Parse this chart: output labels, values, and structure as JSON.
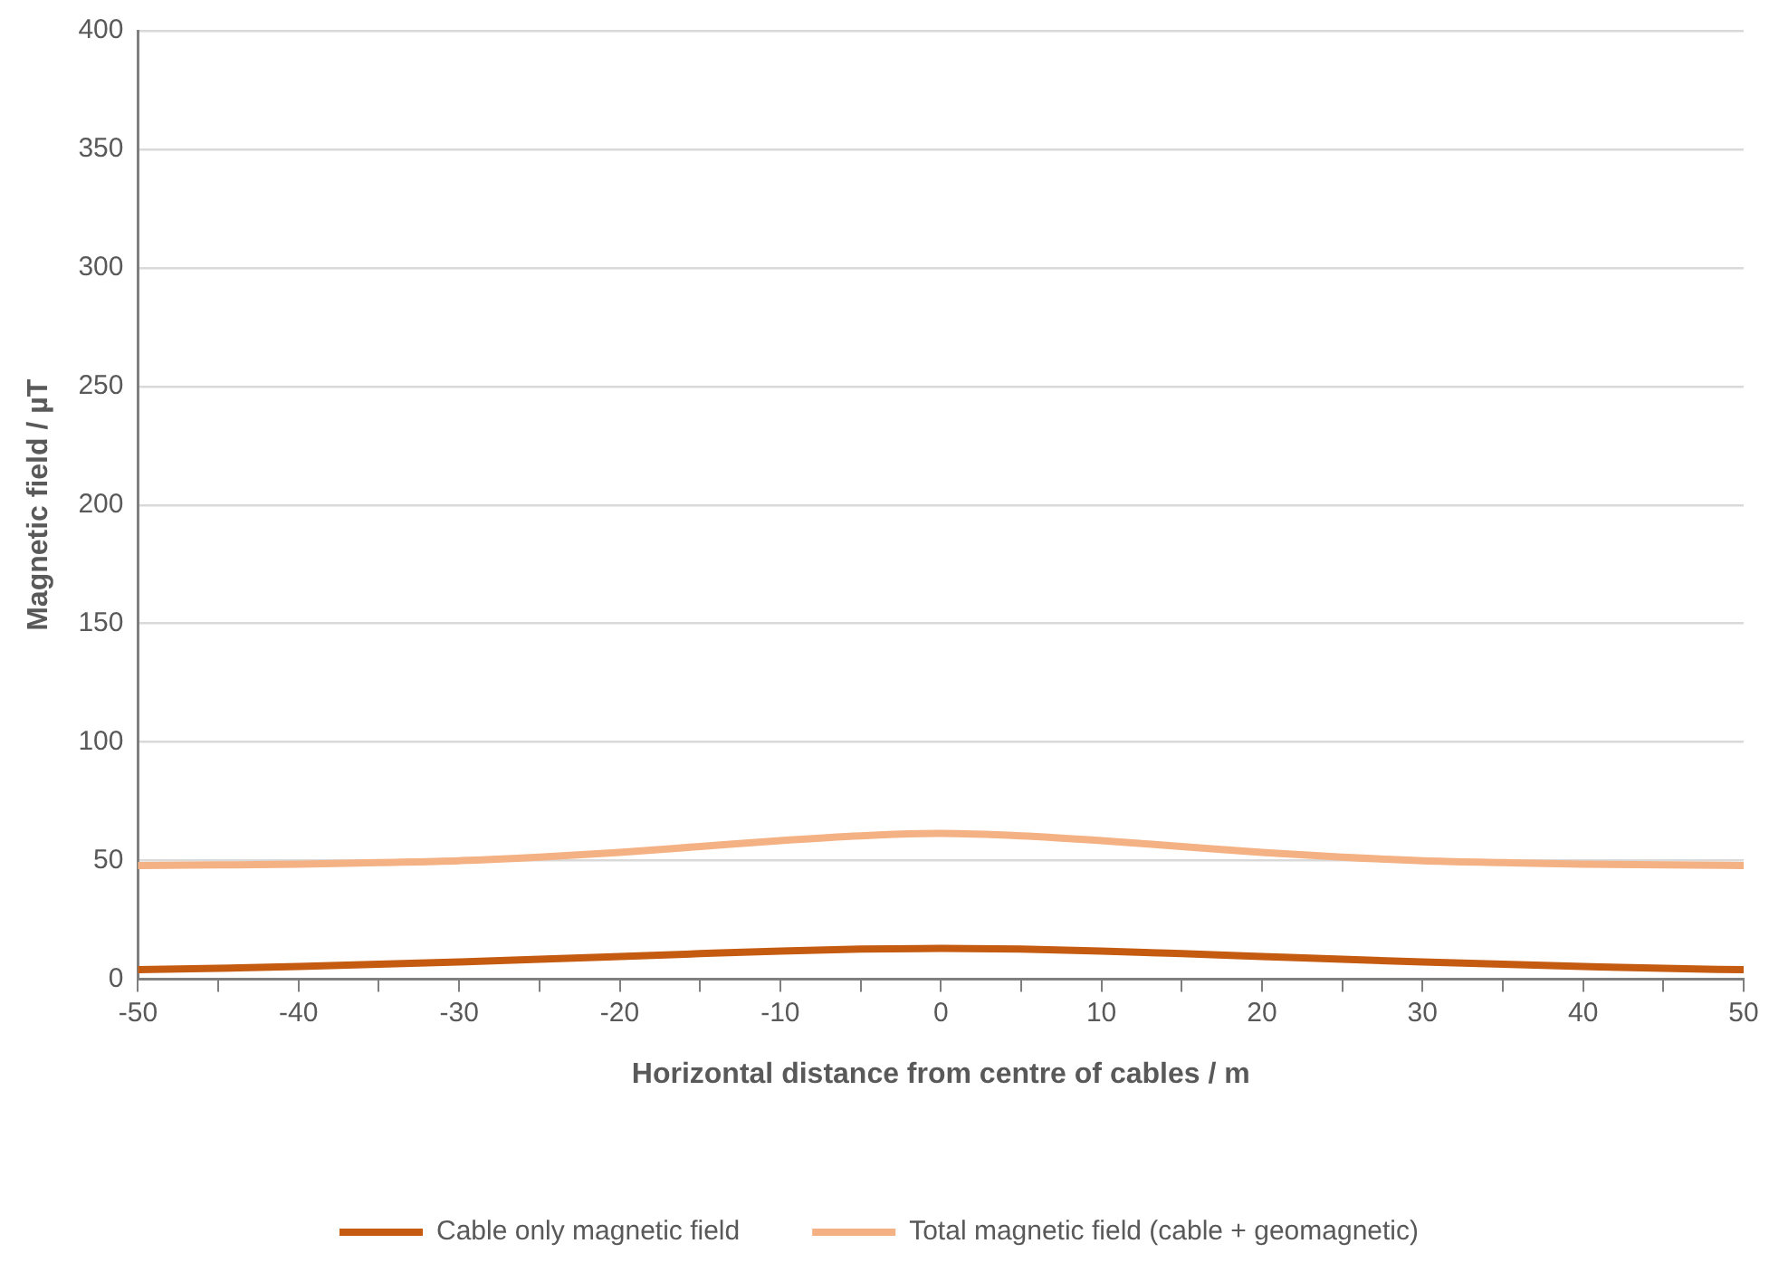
{
  "chart_data": {
    "type": "line",
    "xlabel": "Horizontal distance from centre of cables / m",
    "ylabel": "Magnetic field / µT",
    "x": [
      -50,
      -45,
      -40,
      -35,
      -30,
      -25,
      -20,
      -15,
      -10,
      -5,
      0,
      5,
      10,
      15,
      20,
      25,
      30,
      35,
      40,
      45,
      50
    ],
    "series": [
      {
        "name": "Cable only magnetic field",
        "color": "#c55a11",
        "values": [
          4,
          4.6,
          5.4,
          6.3,
          7.3,
          8.4,
          9.6,
          10.8,
          11.9,
          12.7,
          13,
          12.7,
          11.9,
          10.8,
          9.6,
          8.4,
          7.3,
          6.3,
          5.4,
          4.6,
          4
        ]
      },
      {
        "name": "Total magnetic field (cable + geomagnetic)",
        "color": "#f4b183",
        "values": [
          48,
          48.2,
          48.5,
          49.2,
          50,
          51.5,
          53.5,
          56,
          58.5,
          60.5,
          61.5,
          60.5,
          58.5,
          56,
          53.5,
          51.5,
          50,
          49.2,
          48.5,
          48.2,
          48
        ]
      }
    ],
    "xlim": [
      -50,
      50
    ],
    "xticks": [
      -50,
      {
        "value": -45,
        "label": null
      },
      -40,
      {
        "value": -35,
        "label": null
      },
      -30,
      {
        "value": -25,
        "label": null
      },
      -20,
      {
        "value": -15,
        "label": null
      },
      -10,
      {
        "value": -5,
        "label": null
      },
      0,
      {
        "value": 5,
        "label": null
      },
      10,
      {
        "value": 15,
        "label": null
      },
      20,
      {
        "value": 25,
        "label": null
      },
      30,
      {
        "value": 35,
        "label": null
      },
      40,
      {
        "value": 45,
        "label": null
      },
      50
    ],
    "ylim": [
      0,
      400
    ],
    "yticks": [
      0,
      50,
      100,
      150,
      200,
      250,
      300,
      350,
      400
    ],
    "grid": "y",
    "legend": "bottom",
    "marker": "none",
    "line_style": "solid"
  }
}
